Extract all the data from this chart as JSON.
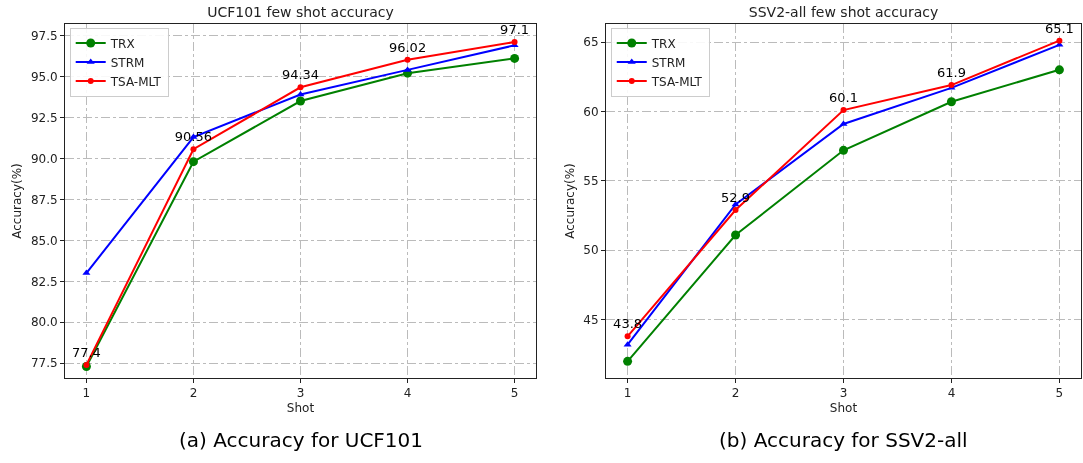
{
  "chart_data": [
    {
      "type": "line",
      "title": "UCF101 few shot accuracy",
      "xlabel": "Shot",
      "ylabel": "Accuracy(%)",
      "x": [
        1,
        2,
        3,
        4,
        5
      ],
      "xlim": [
        0.8,
        5.2
      ],
      "xticks": [
        1,
        2,
        3,
        4,
        5
      ],
      "ylim": [
        76.6,
        98.2
      ],
      "yticks": [
        {
          "value": 77.5,
          "label": "77.5"
        },
        {
          "value": 80,
          "label": "80.0"
        },
        {
          "value": 82.5,
          "label": "82.5"
        },
        {
          "value": 85,
          "label": "85.0"
        },
        {
          "value": 87.5,
          "label": "87.5"
        },
        {
          "value": 90,
          "label": "90.0"
        },
        {
          "value": 92.5,
          "label": "92.5"
        },
        {
          "value": 95,
          "label": "95.0"
        },
        {
          "value": 97.5,
          "label": "97.5"
        }
      ],
      "grid": true,
      "legend": "top left",
      "line_style": "solid",
      "series": [
        {
          "name": "TRX",
          "color": "#008000",
          "marker": "circle",
          "values": [
            77.3,
            89.8,
            93.5,
            95.2,
            96.1
          ]
        },
        {
          "name": "STRM",
          "color": "#0000ff",
          "marker": "triangle",
          "values": [
            83.0,
            91.3,
            93.9,
            95.4,
            96.9
          ]
        },
        {
          "name": "TSA-MLT",
          "color": "#ff0000",
          "marker": "circle",
          "values": [
            77.4,
            90.56,
            94.34,
            96.02,
            97.1
          ],
          "value_labels": [
            "77.4",
            "90.56",
            "94.34",
            "96.02",
            "97.1"
          ]
        }
      ],
      "annotations": [
        "(a) Accuracy for UCF101"
      ]
    },
    {
      "type": "line",
      "title": "SSV2-all few shot accuracy",
      "xlabel": "Shot",
      "ylabel": "Accuracy(%)",
      "x": [
        1,
        2,
        3,
        4,
        5
      ],
      "xlim": [
        0.8,
        5.2
      ],
      "xticks": [
        1,
        2,
        3,
        4,
        5
      ],
      "ylim": [
        40.8,
        66.3
      ],
      "yticks": [
        45,
        50,
        55,
        60,
        65
      ],
      "grid": true,
      "legend": "top left",
      "line_style": "solid",
      "series": [
        {
          "name": "TRX",
          "color": "#008000",
          "marker": "circle",
          "values": [
            42.0,
            51.1,
            57.2,
            60.7,
            63.0
          ]
        },
        {
          "name": "STRM",
          "color": "#0000ff",
          "marker": "triangle",
          "values": [
            43.2,
            53.3,
            59.1,
            61.7,
            64.8
          ]
        },
        {
          "name": "TSA-MLT",
          "color": "#ff0000",
          "marker": "circle",
          "values": [
            43.8,
            52.9,
            60.1,
            61.9,
            65.1
          ],
          "value_labels": [
            "43.8",
            "52.9",
            "60.1",
            "61.9",
            "65.1"
          ]
        }
      ],
      "annotations": [
        "(b) Accuracy for SSV2-all"
      ]
    }
  ]
}
